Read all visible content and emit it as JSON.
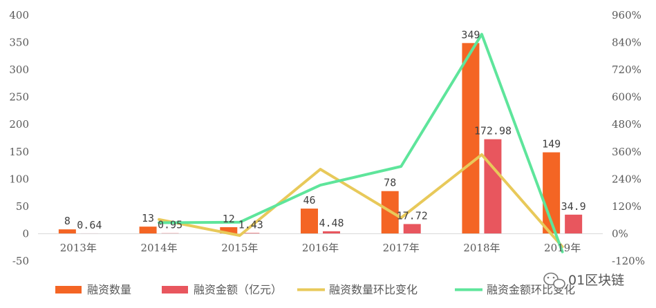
{
  "chart_data": {
    "type": "bar",
    "categories": [
      "2013年",
      "2014年",
      "2015年",
      "2016年",
      "2017年",
      "2018年",
      "2019年"
    ],
    "series": [
      {
        "name": "融资数量",
        "type": "bar",
        "axis": "left",
        "color": "#F46524",
        "values": [
          8,
          13,
          12,
          46,
          78,
          349,
          149
        ],
        "labels": [
          "8",
          "13",
          "12",
          "46",
          "78",
          "349",
          "149"
        ]
      },
      {
        "name": "融资金额（亿元）",
        "type": "bar",
        "axis": "left",
        "color": "#E8565E",
        "values": [
          0.64,
          0.95,
          1.43,
          4.48,
          17.72,
          172.98,
          34.9
        ],
        "labels": [
          "0.64",
          "0.95",
          "1.43",
          "4.48",
          "17.72",
          "172.98",
          "34.9"
        ]
      },
      {
        "name": "融资数量环比变化",
        "type": "line",
        "axis": "right",
        "color": "#E8C95A",
        "values": [
          null,
          62.5,
          -7.7,
          283.3,
          69.6,
          347.4,
          -57.3
        ]
      },
      {
        "name": "融资金额环比变化",
        "type": "line",
        "axis": "right",
        "color": "#5EE59B",
        "values": [
          null,
          48.4,
          50.5,
          213.3,
          295.5,
          876.2,
          -79.8
        ]
      }
    ],
    "y_left": {
      "min": -50,
      "max": 400,
      "ticks": [
        "-50",
        "0",
        "50",
        "100",
        "150",
        "200",
        "250",
        "300",
        "350",
        "400"
      ]
    },
    "y_right": {
      "min": -120,
      "max": 960,
      "ticks": [
        "-120%",
        "0%",
        "120%",
        "240%",
        "360%",
        "480%",
        "600%",
        "720%",
        "840%",
        "960%"
      ]
    },
    "grid": false,
    "legend_position": "bottom"
  },
  "watermark": {
    "text": "01区块链",
    "icon": "wechat-icon"
  }
}
